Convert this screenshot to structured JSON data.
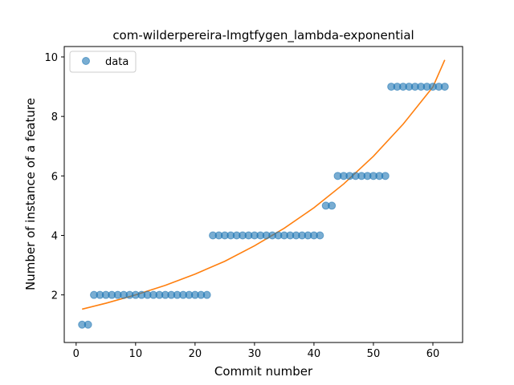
{
  "chart_data": {
    "type": "scatter",
    "title": "com-wilderpereira-lmgtfygen_lambda-exponential",
    "xlabel": "Commit number",
    "ylabel": "Number of instance of a feature",
    "xlim": [
      -2,
      65
    ],
    "ylim": [
      0.4,
      10.35
    ],
    "xticks": [
      0,
      10,
      20,
      30,
      40,
      50,
      60
    ],
    "yticks": [
      2,
      4,
      6,
      8,
      10
    ],
    "grid": false,
    "legend": {
      "placement": "top-left",
      "entries": [
        "data"
      ]
    },
    "colors": {
      "data": "#1f77b4",
      "fit": "#ff7f0e"
    },
    "series": [
      {
        "name": "data",
        "kind": "scatter",
        "x": [
          1,
          2,
          3,
          4,
          5,
          6,
          7,
          8,
          9,
          10,
          11,
          12,
          13,
          14,
          15,
          16,
          17,
          18,
          19,
          20,
          21,
          22,
          23,
          24,
          25,
          26,
          27,
          28,
          29,
          30,
          31,
          32,
          33,
          34,
          35,
          36,
          37,
          38,
          39,
          40,
          41,
          42,
          43,
          44,
          45,
          46,
          47,
          48,
          49,
          50,
          51,
          52,
          53,
          54,
          55,
          56,
          57,
          58,
          59,
          60,
          61,
          62
        ],
        "y": [
          1,
          1,
          2,
          2,
          2,
          2,
          2,
          2,
          2,
          2,
          2,
          2,
          2,
          2,
          2,
          2,
          2,
          2,
          2,
          2,
          2,
          2,
          4,
          4,
          4,
          4,
          4,
          4,
          4,
          4,
          4,
          4,
          4,
          4,
          4,
          4,
          4,
          4,
          4,
          4,
          4,
          5,
          5,
          6,
          6,
          6,
          6,
          6,
          6,
          6,
          6,
          6,
          9,
          9,
          9,
          9,
          9,
          9,
          9,
          9,
          9,
          9
        ]
      },
      {
        "kind": "line",
        "x": [
          1,
          5,
          10,
          15,
          20,
          25,
          30,
          35,
          40,
          45,
          50,
          55,
          60,
          62
        ],
        "y": [
          1.52,
          1.72,
          2.0,
          2.32,
          2.7,
          3.13,
          3.65,
          4.24,
          4.93,
          5.73,
          6.66,
          7.74,
          8.99,
          9.9
        ]
      }
    ]
  }
}
